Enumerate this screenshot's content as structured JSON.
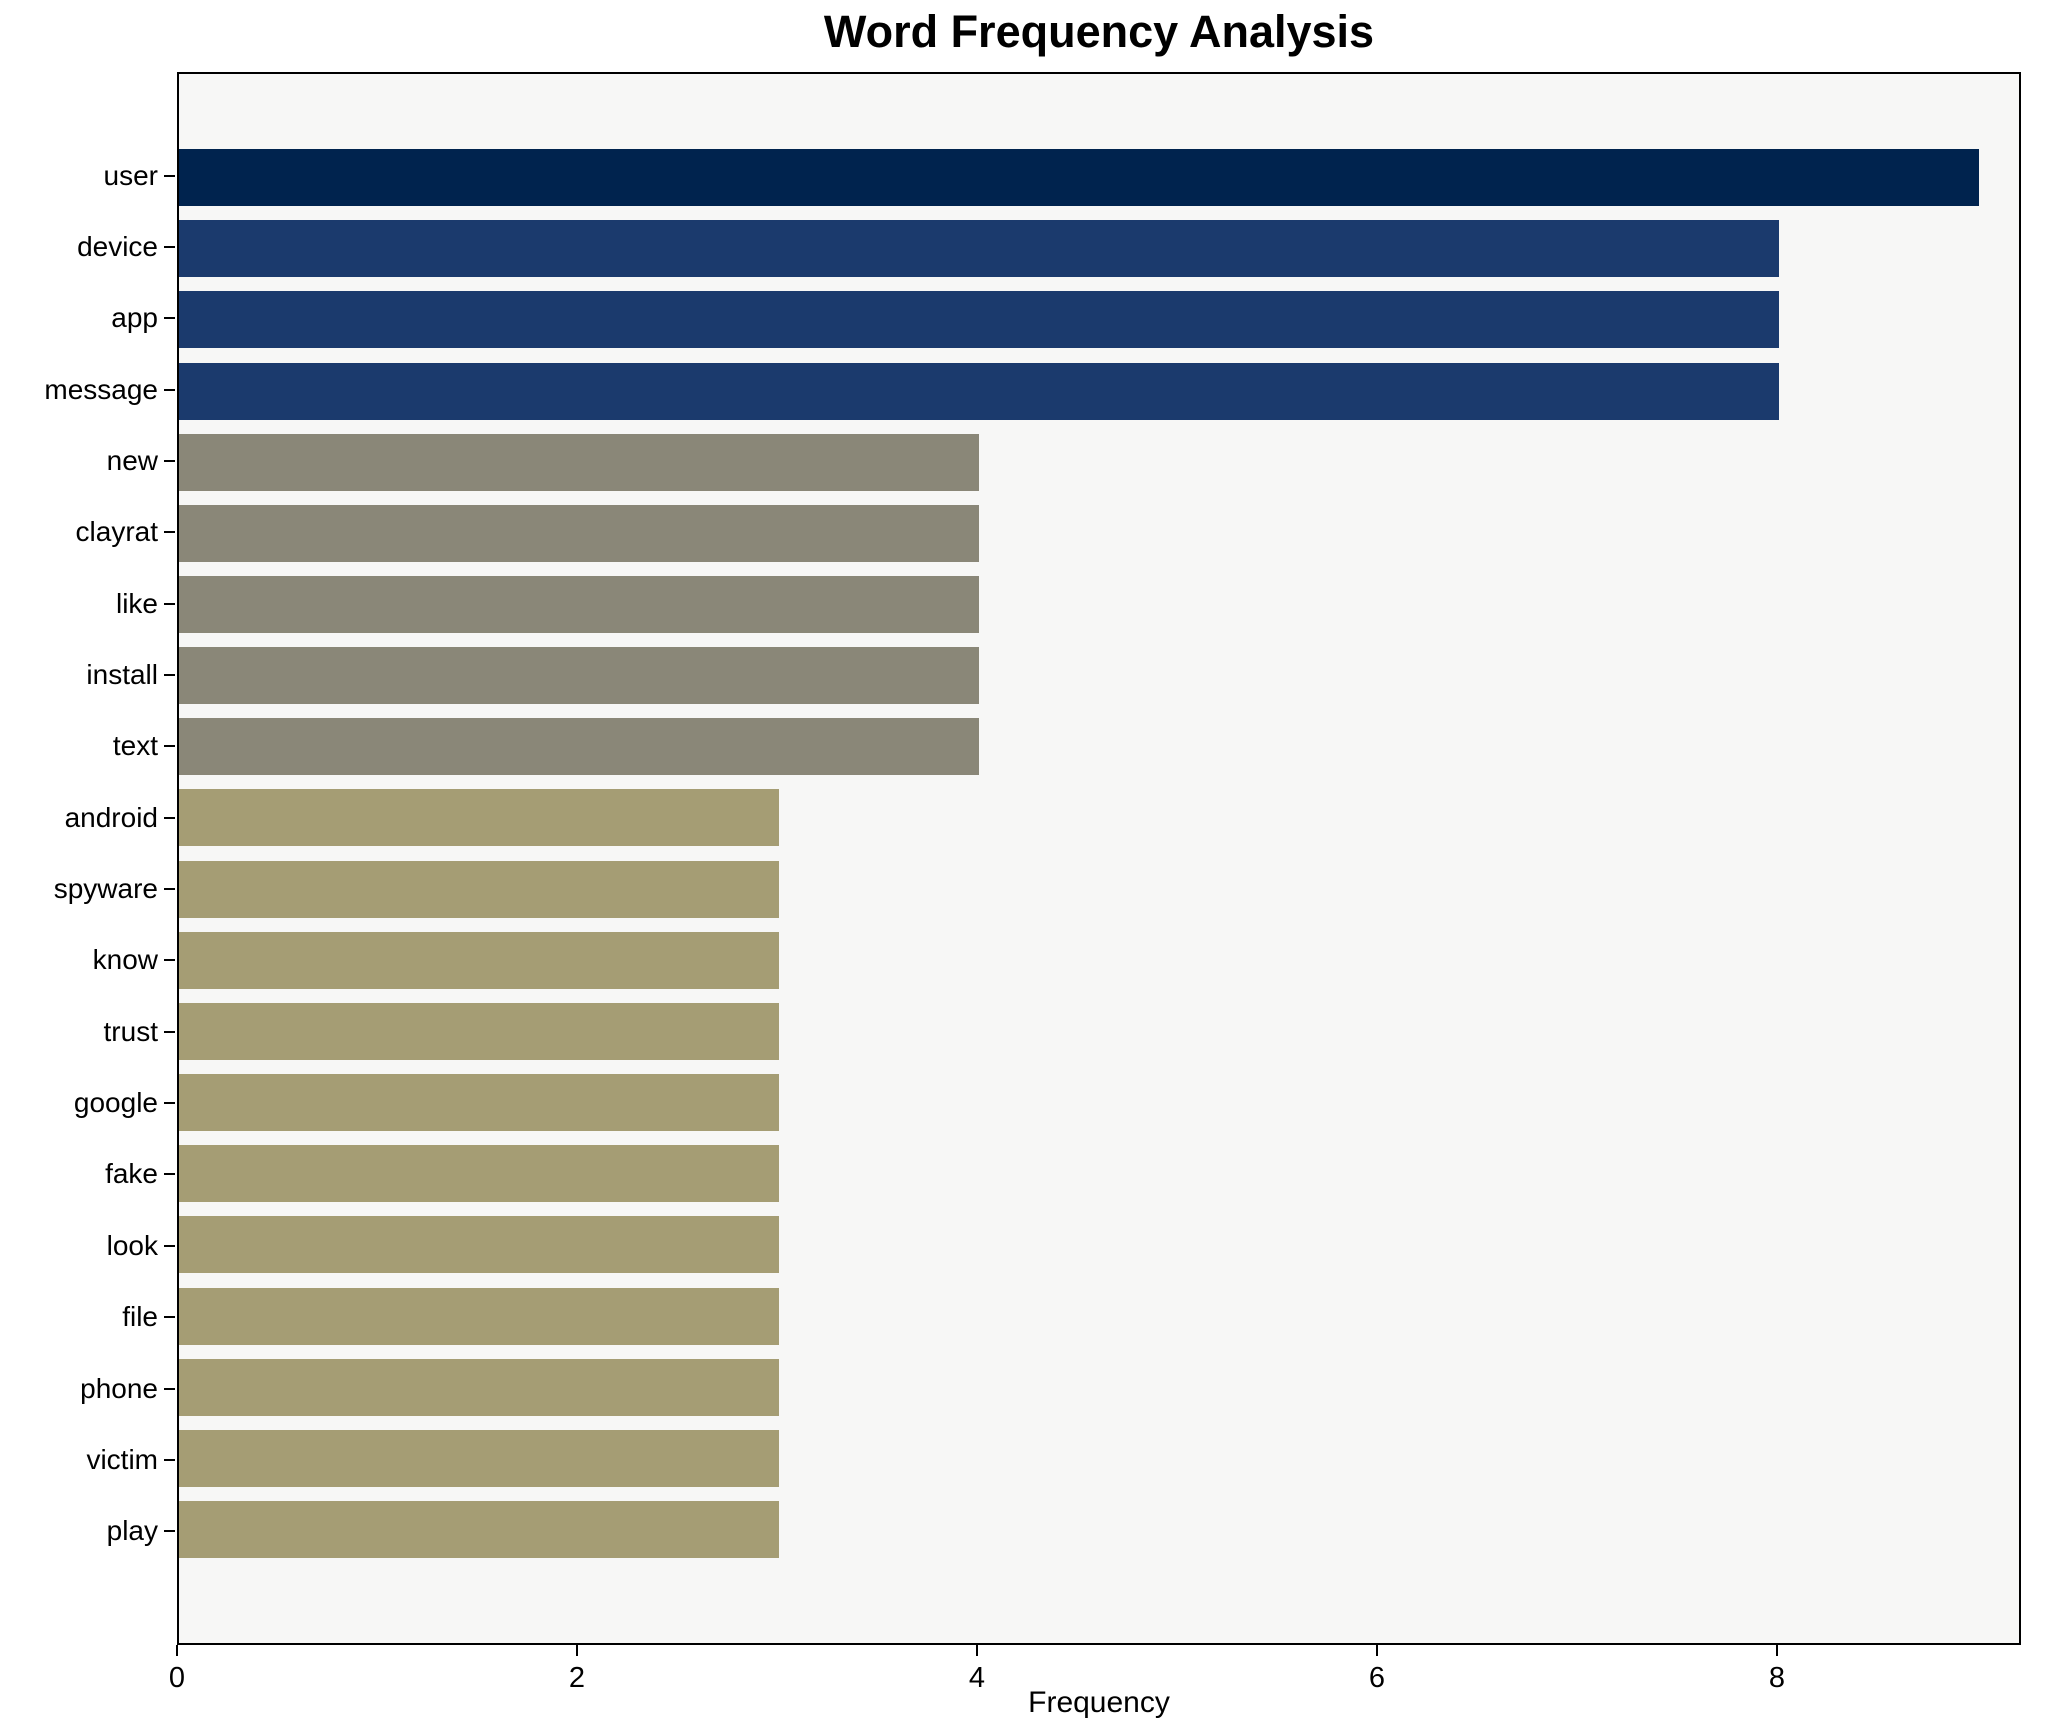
{
  "chart_data": {
    "type": "bar",
    "orientation": "horizontal",
    "title": "Word Frequency Analysis",
    "xlabel": "Frequency",
    "ylabel": "",
    "xlim": [
      0,
      9.22
    ],
    "x_ticks": [
      0,
      2,
      4,
      6,
      8
    ],
    "grid": false,
    "legend": "none",
    "plot_background": "#f7f7f6",
    "page_background": "#ffffff",
    "spine_color": "#000000",
    "categories": [
      "user",
      "device",
      "app",
      "message",
      "new",
      "clayrat",
      "like",
      "install",
      "text",
      "android",
      "spyware",
      "know",
      "trust",
      "google",
      "fake",
      "look",
      "file",
      "phone",
      "victim",
      "play"
    ],
    "values": [
      9,
      8,
      8,
      8,
      4,
      4,
      4,
      4,
      4,
      3,
      3,
      3,
      3,
      3,
      3,
      3,
      3,
      3,
      3,
      3
    ],
    "bar_colors": [
      "#00234e",
      "#1b3a6d",
      "#1b3a6d",
      "#1b3a6d",
      "#8a8778",
      "#8a8778",
      "#8a8778",
      "#8a8778",
      "#8a8778",
      "#a59d74",
      "#a59d74",
      "#a59d74",
      "#a59d74",
      "#a59d74",
      "#a59d74",
      "#a59d74",
      "#a59d74",
      "#a59d74",
      "#a59d74",
      "#a59d74"
    ]
  }
}
